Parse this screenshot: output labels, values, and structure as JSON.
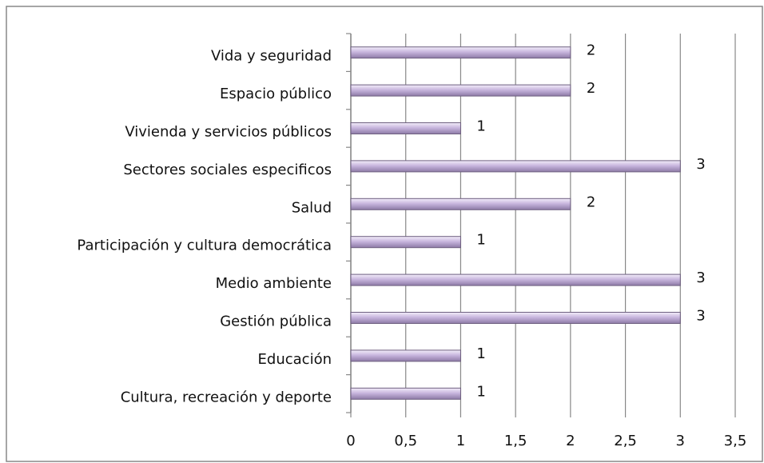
{
  "chart_data": {
    "type": "bar",
    "orientation": "horizontal",
    "categories": [
      "Vida y seguridad",
      "Espacio público",
      "Vivienda y servicios públicos",
      "Sectores sociales especificos",
      "Salud",
      "Participación y cultura democrática",
      "Medio ambiente",
      "Gestión pública",
      "Educación",
      "Cultura, recreación y deporte"
    ],
    "values": [
      2,
      2,
      1,
      3,
      2,
      1,
      3,
      3,
      1,
      1
    ],
    "color": "#c8b6de",
    "xlim": [
      0,
      3.5
    ],
    "xticks": [
      0,
      {
        "value": 0.5,
        "label": "0,5"
      },
      1,
      {
        "value": 1.5,
        "label": "1,5"
      },
      2,
      {
        "value": 2.5,
        "label": "2,5"
      },
      3,
      {
        "value": 3.5,
        "label": "3,5"
      }
    ],
    "grid": true
  }
}
